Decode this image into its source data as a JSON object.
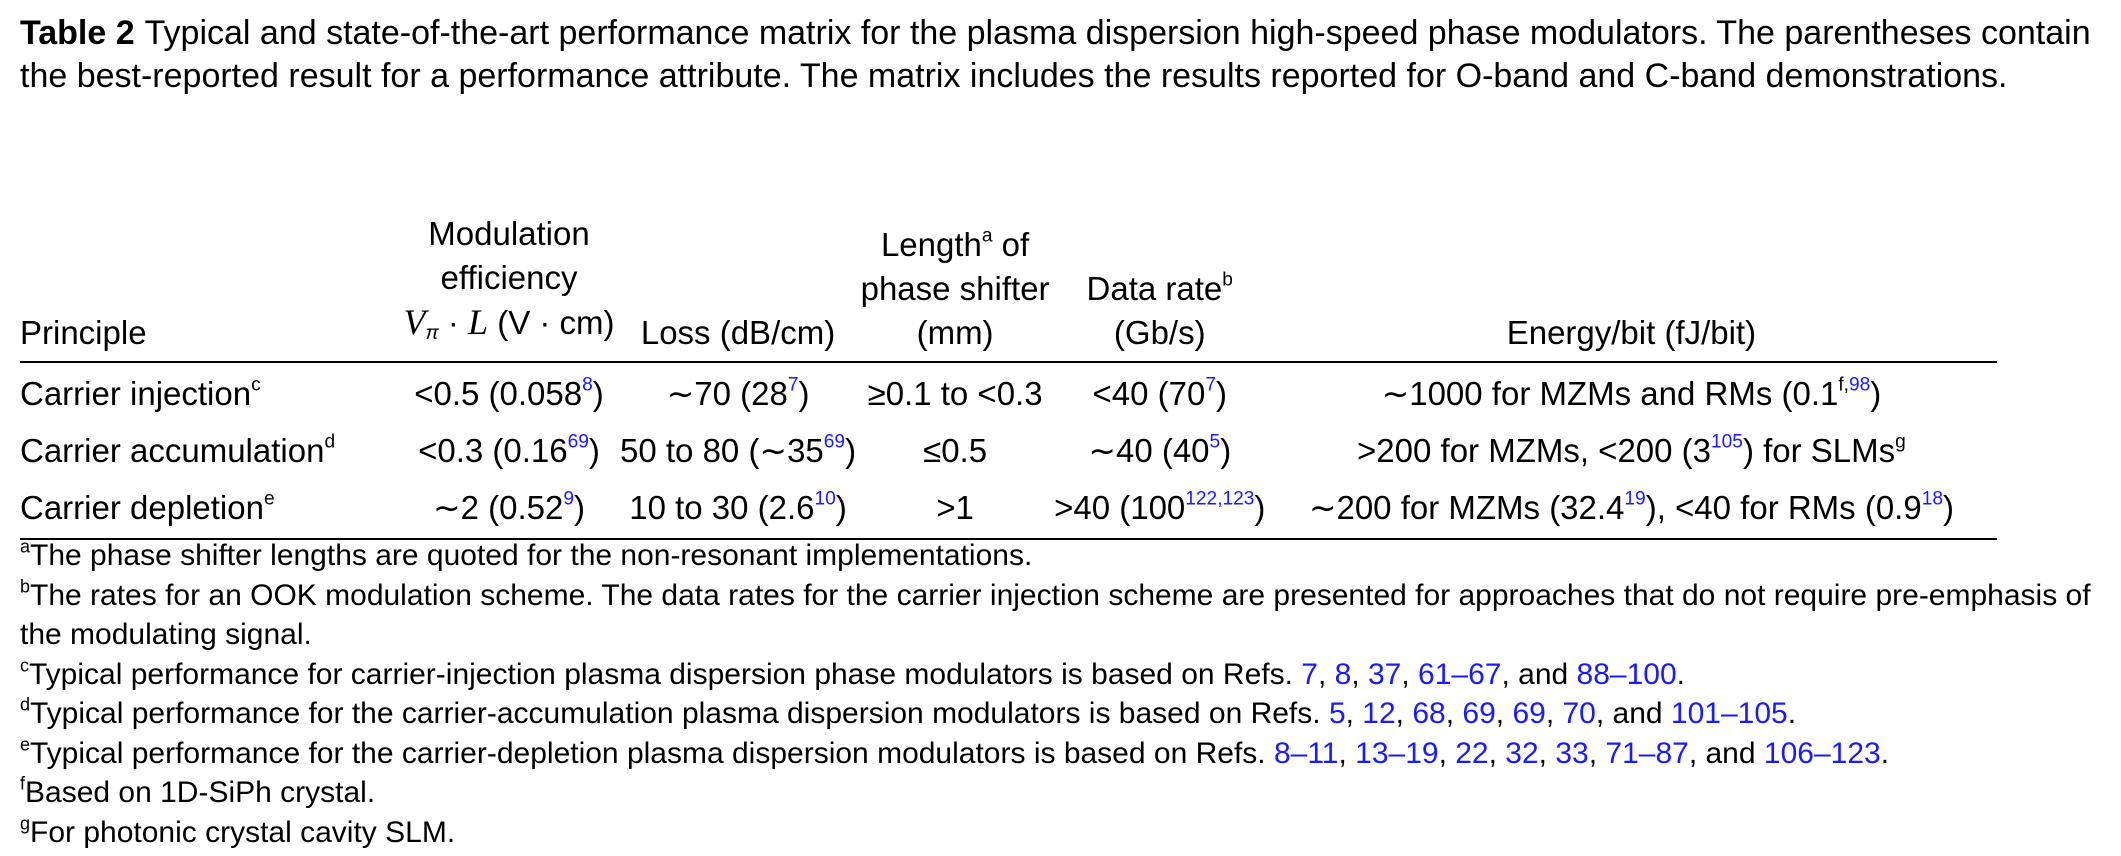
{
  "caption": {
    "label": "Table 2",
    "text": "Typical and state-of-the-art performance matrix for the plasma dispersion high-speed phase modulators. The parentheses contain the best-reported result for a performance attribute. The matrix includes the results reported for O-band and C-band demonstrations."
  },
  "table": {
    "headers": {
      "principle": "Principle",
      "mod_line1": "Modulation",
      "mod_line2": "efficiency",
      "mod_v": "V",
      "mod_pi": "π",
      "mod_rest": " · ",
      "mod_l": "L",
      "mod_unit": " (V · cm)",
      "loss": "Loss (dB/cm)",
      "len_line1": "Length",
      "len_mark": "a",
      "len_line1b": " of",
      "len_line2": "phase shifter",
      "len_line3": "(mm)",
      "rate_line1": "Data rate",
      "rate_mark": "b",
      "rate_line2": "(Gb/s)",
      "energy": "Energy/bit (fJ/bit)"
    },
    "rows": [
      {
        "principle": "Carrier injection",
        "mark": "c",
        "mod": "<0.5 (0.058",
        "mod_ref": "8",
        "mod_end": ")",
        "loss": "∼70 (28",
        "loss_ref": "7",
        "loss_end": ")",
        "length": "≥0.1 to <0.3",
        "rate": "<40 (70",
        "rate_ref": "7",
        "rate_end": ")",
        "energy_a": "∼1000 for MZMs and RMs (0.1",
        "energy_sup_f": "f,",
        "energy_ref1": "98",
        "energy_end": ")"
      },
      {
        "principle": "Carrier accumulation",
        "mark": "d",
        "mod": "<0.3 (0.16",
        "mod_ref": "69",
        "mod_end": ")",
        "loss": "50 to 80 (∼35",
        "loss_ref": "69",
        "loss_end": ")",
        "length": "≤0.5",
        "rate": "∼40 (40",
        "rate_ref": "5",
        "rate_end": ")",
        "energy_a": ">200 for MZMs, <200 (3",
        "energy_ref1": "105",
        "energy_b": ") for SLMs",
        "energy_mark": "g"
      },
      {
        "principle": "Carrier depletion",
        "mark": "e",
        "mod": "∼2 (0.52",
        "mod_ref": "9",
        "mod_end": ")",
        "loss": "10 to 30 (2.6",
        "loss_ref": "10",
        "loss_end": ")",
        "length": ">1",
        "rate": ">40 (100",
        "rate_ref": "122,123",
        "rate_end": ")",
        "energy_a": "∼200 for MZMs (32.4",
        "energy_ref1": "19",
        "energy_b": "), <40 for RMs (0.9",
        "energy_ref2": "18",
        "energy_end": ")"
      }
    ]
  },
  "footnotes": {
    "a": {
      "mark": "a",
      "text": "The phase shifter lengths are quoted for the non-resonant implementations."
    },
    "b": {
      "mark": "b",
      "text": "The rates for an OOK modulation scheme. The data rates for the carrier injection scheme are presented for approaches that do not require pre-emphasis of the modulating signal."
    },
    "c": {
      "mark": "c",
      "text": "Typical performance for carrier-injection plasma dispersion phase modulators is based on Refs. ",
      "refs": [
        "7",
        "8",
        "37",
        "61–67"
      ],
      "and": ", and ",
      "last": "88–100",
      "end": "."
    },
    "d": {
      "mark": "d",
      "text": "Typical performance for the carrier-accumulation plasma dispersion modulators is based on Refs. ",
      "refs": [
        "5",
        "12",
        "68",
        "69",
        "69",
        "70"
      ],
      "and": ", and ",
      "last": "101–105",
      "end": "."
    },
    "e": {
      "mark": "e",
      "text": "Typical performance for the carrier-depletion plasma dispersion modulators is based on Refs. ",
      "refs": [
        "8–11",
        "13–19",
        "22",
        "32",
        "33",
        "71–87"
      ],
      "and": ", and ",
      "last": "106–123",
      "end": "."
    },
    "f": {
      "mark": "f",
      "text": "Based on 1D-SiPh crystal."
    },
    "g": {
      "mark": "g",
      "text": "For photonic crystal cavity SLM."
    }
  },
  "colors": {
    "reference_link": "#1a1aff",
    "text": "#000000"
  }
}
